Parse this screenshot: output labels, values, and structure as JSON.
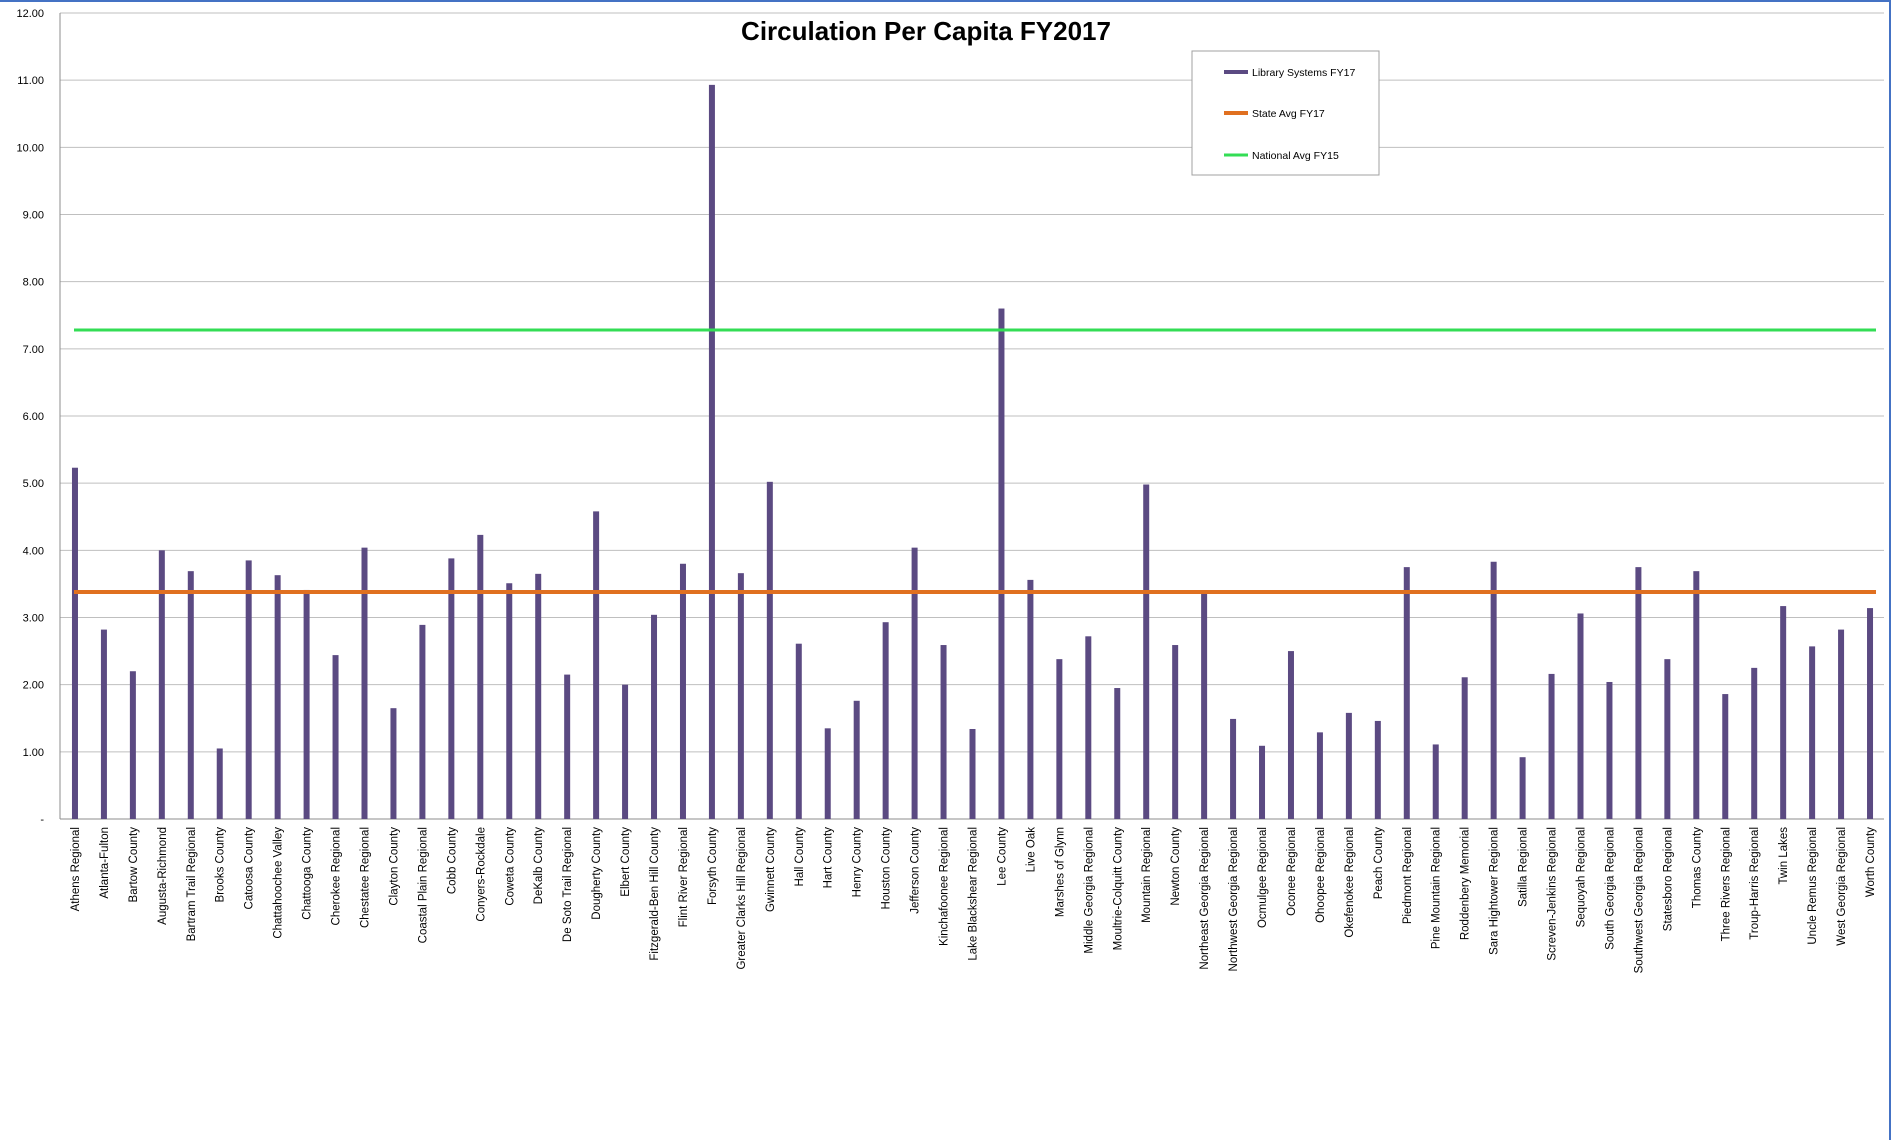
{
  "chart_data": {
    "type": "bar",
    "title": "Circulation Per Capita FY2017",
    "xlabel": "",
    "ylabel": "",
    "ylim": [
      0,
      12
    ],
    "y_ticks": [
      "-",
      "1.00",
      "2.00",
      "3.00",
      "4.00",
      "5.00",
      "6.00",
      "7.00",
      "8.00",
      "9.00",
      "10.00",
      "11.00",
      "12.00"
    ],
    "grid": true,
    "legend_position": "top-right",
    "categories": [
      "Athens Regional",
      "Atlanta-Fulton",
      "Bartow County",
      "Augusta-Richmond",
      "Bartram Trail Regional",
      "Brooks County",
      "Catoosa County",
      "Chattahoochee Valley",
      "Chattooga County",
      "Cherokee Regional",
      "Chestatee Regional",
      "Clayton County",
      "Coastal Plain Regional",
      "Cobb County",
      "Conyers-Rockdale",
      "Coweta County",
      "DeKalb County",
      "De Soto Trail Regional",
      "Dougherty County",
      "Elbert County",
      "Fitzgerald-Ben Hill County",
      "Flint River Regional",
      "Forsyth County",
      "Greater Clarks Hill Regional",
      "Gwinnett County",
      "Hall County",
      "Hart County",
      "Henry County",
      "Houston County",
      "Jefferson County",
      "Kinchafoonee Regional",
      "Lake Blackshear Regional",
      "Lee County",
      "Live Oak",
      "Marshes of Glynn",
      "Middle Georgia Regional",
      "Moultrie-Colquitt County",
      "Mountain Regional",
      "Newton County",
      "Northeast Georgia Regional",
      "Northwest Georgia Regional",
      "Ocmulgee Regional",
      "Oconee Regional",
      "Ohoopee Regional",
      "Okefenokee Regional",
      "Peach County",
      "Piedmont Regional",
      "Pine Mountain Regional",
      "Roddenbery Memorial",
      "Sara Hightower Regional",
      "Satilla Regional",
      "Screven-Jenkins Regional",
      "Sequoyah Regional",
      "South Georgia Regional",
      "Southwest Georgia Regional",
      "Statesboro Regional",
      "Thomas County",
      "Three Rivers Regional",
      "Troup-Harris Regional",
      "Twin Lakes",
      "Uncle Remus Regional",
      "West Georgia Regional",
      "Worth County"
    ],
    "series": [
      {
        "name": "Library Systems FY17",
        "kind": "bar",
        "color": "#5b4a82",
        "values": [
          5.23,
          2.82,
          2.2,
          4.0,
          3.69,
          1.05,
          3.85,
          3.63,
          3.41,
          2.44,
          4.04,
          1.65,
          2.89,
          3.88,
          4.23,
          3.51,
          3.65,
          2.15,
          4.58,
          2.0,
          3.04,
          3.8,
          10.93,
          3.66,
          5.02,
          2.61,
          1.35,
          1.76,
          2.93,
          4.04,
          2.59,
          1.34,
          7.6,
          3.56,
          2.38,
          2.72,
          1.95,
          4.98,
          2.59,
          3.38,
          1.49,
          1.09,
          2.5,
          1.29,
          1.58,
          1.46,
          3.75,
          1.11,
          2.11,
          3.83,
          0.92,
          2.16,
          3.06,
          2.04,
          3.75,
          2.38,
          3.69,
          1.86,
          2.25,
          3.17,
          2.57,
          2.82,
          3.14
        ]
      },
      {
        "name": "State Avg FY17",
        "kind": "hline",
        "color": "#e07020",
        "value": 3.38
      },
      {
        "name": "National Avg FY15",
        "kind": "hline",
        "color": "#33dd55",
        "value": 7.28
      }
    ]
  }
}
